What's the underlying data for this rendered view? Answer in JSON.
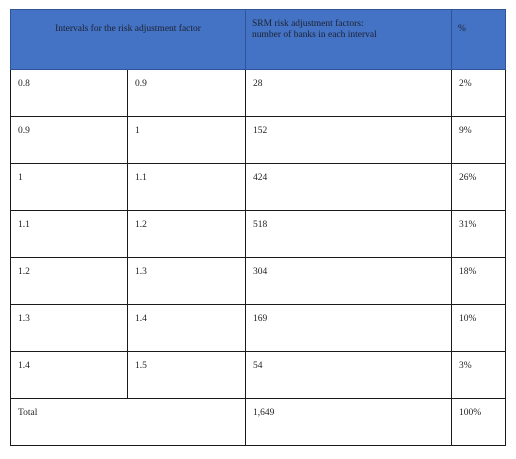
{
  "table": {
    "headers": {
      "intervals": "Intervals for the risk adjustment factor",
      "srm_line1": "SRM risk adjustment factors:",
      "srm_line2": "number of  banks in each interval",
      "percent": "%"
    },
    "rows": [
      {
        "from": "0.8",
        "to": "0.9",
        "count": "28",
        "percent": "2%"
      },
      {
        "from": "0.9",
        "to": "1",
        "count": "152",
        "percent": "9%"
      },
      {
        "from": "1",
        "to": "1.1",
        "count": "424",
        "percent": "26%"
      },
      {
        "from": "1.1",
        "to": "1.2",
        "count": "518",
        "percent": "31%"
      },
      {
        "from": "1.2",
        "to": "1.3",
        "count": "304",
        "percent": "18%"
      },
      {
        "from": "1.3",
        "to": "1.4",
        "count": "169",
        "percent": "10%"
      },
      {
        "from": "1.4",
        "to": "1.5",
        "count": "54",
        "percent": "3%"
      }
    ],
    "total": {
      "label": "Total",
      "count": "1,649",
      "percent": "100%"
    },
    "header_color": "#4472c4"
  }
}
